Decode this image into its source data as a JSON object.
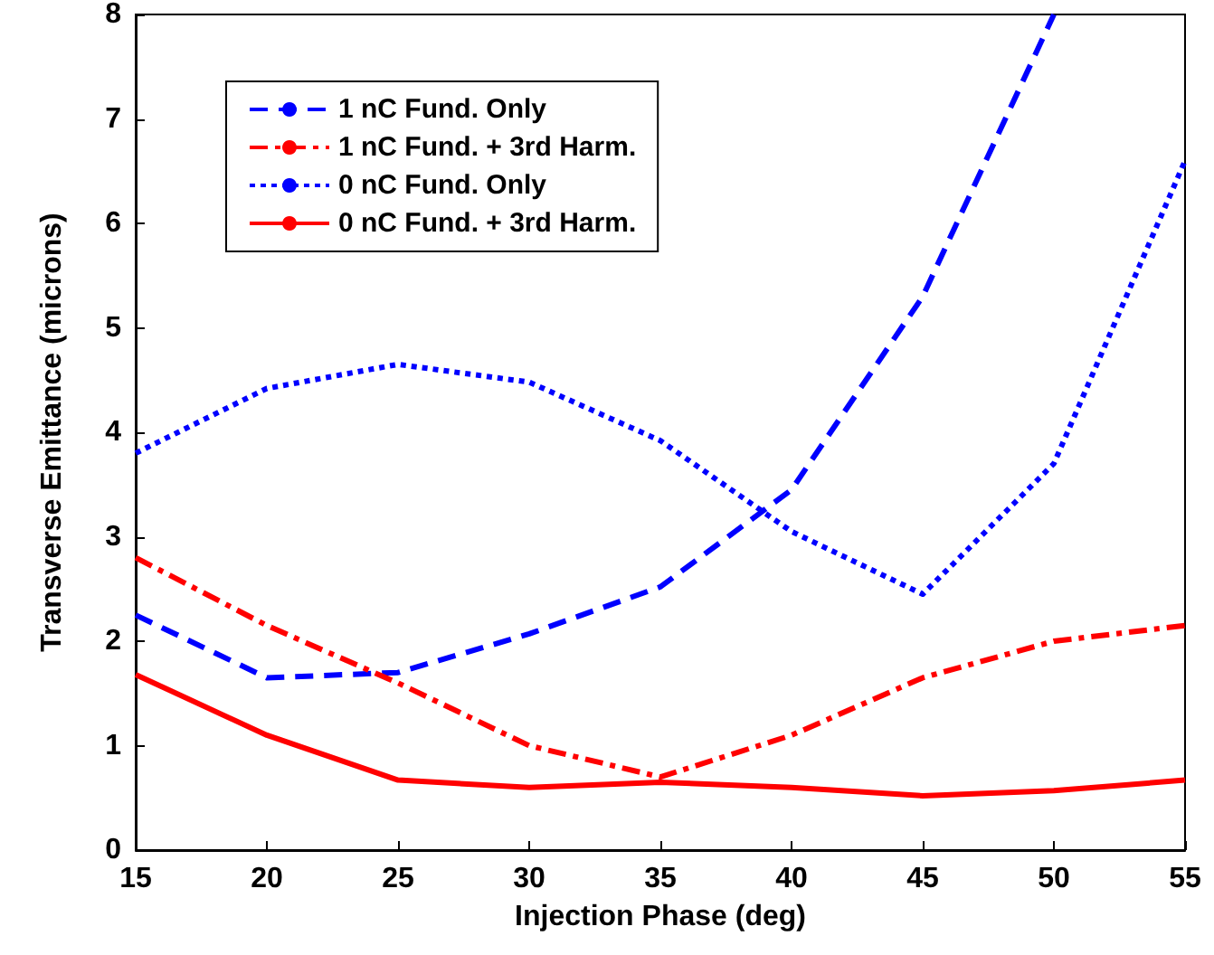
{
  "chart_data": {
    "type": "line",
    "xlabel": "Injection Phase (deg)",
    "ylabel": "Transverse Emittance (microns)",
    "x": [
      15,
      20,
      25,
      30,
      35,
      40,
      45,
      50,
      55
    ],
    "xlim": [
      15,
      55
    ],
    "xticks": [
      15,
      20,
      25,
      30,
      35,
      40,
      45,
      50,
      55
    ],
    "ylim": [
      0,
      8
    ],
    "yticks": [
      0,
      1,
      2,
      3,
      4,
      5,
      6,
      7,
      8
    ],
    "grid": false,
    "legend": "top left",
    "marker": "none",
    "series": [
      {
        "name": "1 nC Fund. Only",
        "color": "#0000ff",
        "line_style": "dashed",
        "values": [
          2.25,
          1.65,
          1.7,
          2.07,
          2.52,
          3.45,
          5.3,
          8.0,
          null
        ]
      },
      {
        "name": "1 nC Fund. + 3rd Harm.",
        "color": "#ff0000",
        "line_style": "dashdot",
        "values": [
          2.8,
          2.15,
          1.6,
          1.0,
          0.7,
          1.1,
          1.65,
          2.0,
          2.15
        ]
      },
      {
        "name": "0 nC Fund. Only",
        "color": "#0000ff",
        "line_style": "dotted",
        "values": [
          3.8,
          4.42,
          4.65,
          4.48,
          3.92,
          3.05,
          2.45,
          3.7,
          6.6
        ]
      },
      {
        "name": "0 nC Fund. + 3rd Harm.",
        "color": "#ff0000",
        "line_style": "solid",
        "values": [
          1.68,
          1.1,
          0.67,
          0.6,
          0.65,
          0.6,
          0.52,
          0.57,
          0.67
        ]
      }
    ]
  }
}
